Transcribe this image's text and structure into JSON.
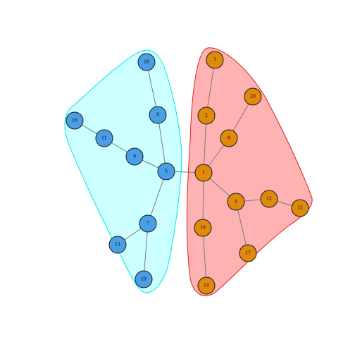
{
  "graph": {
    "groups": [
      {
        "id": "left-cluster",
        "fill": "#00ffff",
        "fill_opacity": 0.2,
        "stroke": "#00e5e5"
      },
      {
        "id": "right-cluster",
        "fill": "#ff0000",
        "fill_opacity": 0.3,
        "stroke": "#e02020"
      }
    ],
    "node_colors": {
      "left-cluster": "#4a9ee6",
      "right-cluster": "#e08a0b"
    },
    "nodes": [
      {
        "id": "1",
        "label": "1",
        "group": "right-cluster"
      },
      {
        "id": "2",
        "label": "2",
        "group": "right-cluster"
      },
      {
        "id": "3",
        "label": "3",
        "group": "right-cluster"
      },
      {
        "id": "4",
        "label": "4",
        "group": "right-cluster"
      },
      {
        "id": "5",
        "label": "5",
        "group": "left-cluster"
      },
      {
        "id": "6",
        "label": "6",
        "group": "left-cluster"
      },
      {
        "id": "7",
        "label": "7",
        "group": "left-cluster"
      },
      {
        "id": "8",
        "label": "8",
        "group": "right-cluster"
      },
      {
        "id": "9",
        "label": "9",
        "group": "left-cluster"
      },
      {
        "id": "10",
        "label": "10",
        "group": "right-cluster"
      },
      {
        "id": "11",
        "label": "11",
        "group": "left-cluster"
      },
      {
        "id": "12",
        "label": "12",
        "group": "right-cluster"
      },
      {
        "id": "13",
        "label": "13",
        "group": "left-cluster"
      },
      {
        "id": "14",
        "label": "14",
        "group": "right-cluster"
      },
      {
        "id": "15",
        "label": "15",
        "group": "right-cluster"
      },
      {
        "id": "16",
        "label": "16",
        "group": "left-cluster"
      },
      {
        "id": "17",
        "label": "17",
        "group": "right-cluster"
      },
      {
        "id": "18",
        "label": "18",
        "group": "left-cluster"
      },
      {
        "id": "19",
        "label": "19",
        "group": "left-cluster"
      },
      {
        "id": "20",
        "label": "20",
        "group": "right-cluster"
      }
    ],
    "edges": [
      [
        "5",
        "1"
      ],
      [
        "1",
        "2"
      ],
      [
        "2",
        "3"
      ],
      [
        "1",
        "8"
      ],
      [
        "8",
        "20"
      ],
      [
        "1",
        "4"
      ],
      [
        "4",
        "12"
      ],
      [
        "12",
        "15"
      ],
      [
        "4",
        "17"
      ],
      [
        "1",
        "10"
      ],
      [
        "10",
        "14"
      ],
      [
        "5",
        "6"
      ],
      [
        "6",
        "18"
      ],
      [
        "5",
        "9"
      ],
      [
        "9",
        "11"
      ],
      [
        "11",
        "16"
      ],
      [
        "5",
        "7"
      ],
      [
        "7",
        "13"
      ],
      [
        "7",
        "19"
      ]
    ]
  }
}
